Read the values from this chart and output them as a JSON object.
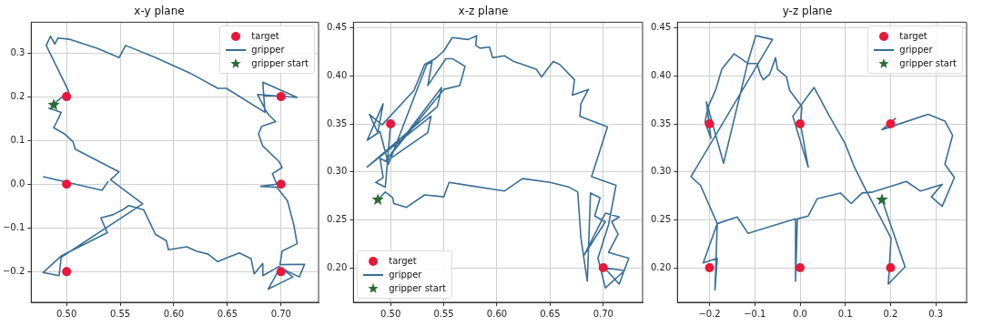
{
  "chart_data": [
    {
      "type": "scatter",
      "title": "x-y plane",
      "legend": "top right",
      "grid": true,
      "xlim": [
        0.467,
        0.735
      ],
      "ylim": [
        -0.27,
        0.37
      ],
      "xticks": [
        {
          "value": 0.5,
          "label": "0.50"
        },
        {
          "value": 0.55,
          "label": "0.55"
        },
        {
          "value": 0.6,
          "label": "0.60"
        },
        {
          "value": 0.65,
          "label": "0.65"
        },
        {
          "value": 0.7,
          "label": "0.70"
        }
      ],
      "yticks": [
        {
          "value": -0.2,
          "label": "−0.2"
        },
        {
          "value": -0.1,
          "label": "−0.1"
        },
        {
          "value": 0,
          "label": "0.0"
        },
        {
          "value": 0.1,
          "label": "0.1"
        },
        {
          "value": 0.2,
          "label": "0.2"
        },
        {
          "value": 0.3,
          "label": "0.3"
        }
      ],
      "series": [
        {
          "name": "target",
          "type": "scatter",
          "marker": "circle",
          "color": "#e8173c",
          "x": [
            0.5,
            0.5,
            0.5,
            0.7,
            0.7,
            0.7
          ],
          "values": [
            0.2,
            0,
            -0.2,
            0.2,
            0,
            -0.2
          ]
        },
        {
          "name": "gripper",
          "type": "line",
          "marker": "none",
          "color": "#3a6f94",
          "x": [
            0.488,
            0.502,
            0.481,
            0.485,
            0.489,
            0.492,
            0.503,
            0.529,
            0.549,
            0.555,
            0.583,
            0.615,
            0.641,
            0.649,
            0.685,
            0.683,
            0.715,
            0.678,
            0.686,
            0.689,
            0.695,
            0.682,
            0.679,
            0.683,
            0.698,
            0.701,
            0.692,
            0.696,
            0.681,
            0.696,
            0.706,
            0.712,
            0.715,
            0.701,
            0.699,
            0.722,
            0.717,
            0.699,
            0.688,
            0.711,
            0.698,
            0.683,
            0.683,
            0.675,
            0.672,
            0.661,
            0.641,
            0.632,
            0.621,
            0.612,
            0.595,
            0.593,
            0.583,
            0.572,
            0.558,
            0.552,
            0.543,
            0.532,
            0.538,
            0.495,
            0.478,
            0.493,
            0.495,
            0.571,
            0.541,
            0.549,
            0.508,
            0.506,
            0.498,
            0.488,
            0.491,
            0.495,
            0.483,
            null,
            0.478,
            0.533,
            0.539
          ],
          "values": [
            0.183,
            0.212,
            0.317,
            0.338,
            0.32,
            0.334,
            0.331,
            0.31,
            0.289,
            0.317,
            0.289,
            0.254,
            0.219,
            0.219,
            0.164,
            0.233,
            0.198,
            0.205,
            0.167,
            0.157,
            0.143,
            0.132,
            0.115,
            0.087,
            0.052,
            0.038,
            0.024,
            0.0,
            -0.005,
            -0.007,
            -0.038,
            -0.094,
            -0.136,
            -0.153,
            -0.184,
            -0.183,
            -0.212,
            -0.191,
            -0.24,
            -0.212,
            -0.188,
            -0.209,
            -0.181,
            -0.205,
            -0.17,
            -0.157,
            -0.177,
            -0.16,
            -0.153,
            -0.143,
            -0.15,
            -0.129,
            -0.115,
            -0.059,
            -0.049,
            -0.059,
            -0.07,
            -0.077,
            -0.111,
            -0.164,
            -0.202,
            -0.209,
            -0.167,
            -0.045,
            0.01,
            0.028,
            0.08,
            0.097,
            0.115,
            0.129,
            0.143,
            0.164,
            0.174,
            null,
            0.017,
            -0.014,
            0.007
          ]
        },
        {
          "name": "gripper start",
          "type": "scatter",
          "marker": "star",
          "color": "#2a6b35",
          "x": [
            0.488
          ],
          "values": [
            0.181
          ]
        }
      ]
    },
    {
      "type": "scatter",
      "title": "x-z plane",
      "legend": "bottom left",
      "grid": true,
      "xlim": [
        0.465,
        0.737
      ],
      "ylim": [
        0.164,
        0.456
      ],
      "xticks": [
        {
          "value": 0.5,
          "label": "0.50"
        },
        {
          "value": 0.55,
          "label": "0.55"
        },
        {
          "value": 0.6,
          "label": "0.60"
        },
        {
          "value": 0.65,
          "label": "0.65"
        },
        {
          "value": 0.7,
          "label": "0.70"
        }
      ],
      "yticks": [
        {
          "value": 0.2,
          "label": "0.20"
        },
        {
          "value": 0.25,
          "label": "0.25"
        },
        {
          "value": 0.3,
          "label": "0.30"
        },
        {
          "value": 0.35,
          "label": "0.35"
        },
        {
          "value": 0.4,
          "label": "0.40"
        },
        {
          "value": 0.45,
          "label": "0.45"
        }
      ],
      "series": [
        {
          "name": "target",
          "type": "scatter",
          "marker": "circle",
          "color": "#e8173c",
          "x": [
            0.5,
            0.7
          ],
          "values": [
            0.35,
            0.2
          ]
        },
        {
          "name": "gripper",
          "type": "line",
          "marker": "none",
          "color": "#3a6f94",
          "x": [
            0.488,
            0.495,
            0.502,
            0.503,
            0.515,
            0.532,
            0.55,
            0.555,
            0.607,
            0.624,
            0.65,
            0.668,
            0.676,
            0.679,
            0.685,
            0.688,
            0.697,
            0.692,
            0.702,
            0.682,
            0.702,
            0.715,
            0.708,
            0.714,
            0.705,
            0.724,
            0.715,
            0.701,
            0.72,
            0.702,
            0.695,
            0.705,
            0.712,
            0.689,
            0.704,
            0.678,
            0.679,
            0.686,
            0.671,
            0.673,
            0.659,
            0.653,
            0.648,
            0.642,
            0.637,
            0.616,
            0.607,
            0.596,
            0.593,
            0.584,
            0.58,
            0.581,
            0.573,
            0.558,
            0.55,
            0.542,
            0.532,
            0.522,
            0.492,
            0.48,
            0.488,
            0.493,
            0.478,
            0.49,
            0.498,
            0.534,
            0.539,
            0.535,
            0.552,
            0.558,
            0.57,
            0.565,
            0.55,
            0.495,
            0.548,
            0.544,
            0.478,
            0.538,
            0.535,
            0.496,
            0.49,
            0.493,
            0.486,
            0.495,
            0.5
          ],
          "values": [
            0.271,
            0.279,
            0.273,
            0.267,
            0.263,
            0.276,
            0.274,
            0.289,
            0.28,
            0.293,
            0.289,
            0.284,
            0.279,
            0.231,
            0.186,
            0.278,
            0.273,
            0.254,
            0.248,
            0.213,
            0.257,
            0.253,
            0.248,
            0.235,
            0.216,
            0.21,
            0.183,
            0.2,
            0.197,
            0.179,
            0.21,
            0.245,
            0.286,
            0.295,
            0.347,
            0.358,
            0.371,
            0.386,
            0.38,
            0.396,
            0.412,
            0.415,
            0.408,
            0.399,
            0.407,
            0.415,
            0.421,
            0.419,
            0.43,
            0.429,
            0.432,
            0.442,
            0.438,
            0.44,
            0.426,
            0.418,
            0.412,
            0.385,
            0.349,
            0.36,
            0.341,
            0.371,
            0.333,
            0.342,
            0.308,
            0.412,
            0.415,
            0.39,
            0.418,
            0.418,
            0.41,
            0.39,
            0.386,
            0.311,
            0.388,
            0.368,
            0.305,
            0.358,
            0.341,
            0.311,
            0.314,
            0.294,
            0.289,
            0.284,
            0.35
          ]
        },
        {
          "name": "gripper start",
          "type": "scatter",
          "marker": "star",
          "color": "#2a6b35",
          "x": [
            0.488
          ],
          "values": [
            0.271
          ]
        }
      ]
    },
    {
      "type": "scatter",
      "title": "y-z plane",
      "legend": "top right",
      "grid": true,
      "xlim": [
        -0.271,
        0.368
      ],
      "ylim": [
        0.164,
        0.456
      ],
      "xticks": [
        {
          "value": -0.2,
          "label": "−0.2"
        },
        {
          "value": -0.1,
          "label": "−0.1"
        },
        {
          "value": 0,
          "label": "0.0"
        },
        {
          "value": 0.1,
          "label": "0.1"
        },
        {
          "value": 0.2,
          "label": "0.2"
        },
        {
          "value": 0.3,
          "label": "0.3"
        }
      ],
      "yticks": [
        {
          "value": 0.2,
          "label": "0.20"
        },
        {
          "value": 0.25,
          "label": "0.25"
        },
        {
          "value": 0.3,
          "label": "0.30"
        },
        {
          "value": 0.35,
          "label": "0.35"
        },
        {
          "value": 0.4,
          "label": "0.40"
        },
        {
          "value": 0.45,
          "label": "0.45"
        }
      ],
      "series": [
        {
          "name": "target",
          "type": "scatter",
          "marker": "circle",
          "color": "#e8173c",
          "x": [
            -0.2,
            0,
            0.2,
            -0.2,
            0,
            0.2
          ],
          "values": [
            0.35,
            0.35,
            0.35,
            0.2,
            0.2,
            0.2
          ]
        },
        {
          "name": "gripper",
          "type": "line",
          "marker": "none",
          "color": "#3a6f94",
          "x": [
            0.181,
            0.232,
            0.195,
            0.201,
            0.14,
            0.12,
            0.099,
            0.065,
            0.031,
            -0.016,
            0.018,
            0.001,
            0.004,
            -0.023,
            -0.03,
            -0.05,
            -0.054,
            -0.067,
            -0.081,
            -0.088,
            -0.095,
            -0.115,
            -0.146,
            -0.173,
            -0.186,
            -0.203,
            -0.21,
            -0.197,
            -0.207,
            -0.169,
            -0.115,
            -0.098,
            -0.061,
            -0.241,
            -0.22,
            -0.183,
            -0.214,
            -0.183,
            -0.188,
            -0.183,
            -0.139,
            -0.115,
            -0.01,
            -0.01,
            -0.006,
            0.018,
            0.038,
            0.089,
            0.113,
            0.137,
            0.161,
            0.235,
            0.266,
            0.314,
            0.29,
            0.314,
            0.341,
            0.32,
            0.337,
            0.32,
            0.283,
            0.181,
            0.212
          ],
          "values": [
            0.271,
            0.201,
            0.183,
            0.231,
            0.286,
            0.305,
            0.33,
            0.358,
            0.388,
            0.358,
            0.305,
            0.35,
            0.368,
            0.385,
            0.399,
            0.407,
            0.419,
            0.402,
            0.396,
            0.402,
            0.413,
            0.413,
            0.423,
            0.407,
            0.386,
            0.368,
            0.352,
            0.335,
            0.373,
            0.309,
            0.415,
            0.442,
            0.438,
            0.295,
            0.286,
            0.246,
            0.205,
            0.21,
            0.177,
            0.246,
            0.253,
            0.236,
            0.251,
            0.186,
            0.251,
            0.254,
            0.272,
            0.278,
            0.267,
            0.278,
            0.279,
            0.29,
            0.28,
            0.287,
            0.274,
            0.264,
            0.294,
            0.308,
            0.338,
            0.353,
            0.36,
            0.344,
            0.356
          ]
        },
        {
          "name": "gripper start",
          "type": "scatter",
          "marker": "star",
          "color": "#2a6b35",
          "x": [
            0.181
          ],
          "values": [
            0.271
          ]
        }
      ]
    }
  ]
}
